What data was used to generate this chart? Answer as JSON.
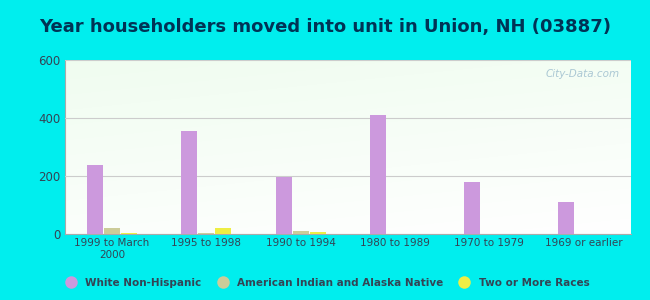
{
  "title": "Year householders moved into unit in Union, NH (03887)",
  "categories": [
    "1999 to March\n2000",
    "1995 to 1998",
    "1990 to 1994",
    "1980 to 1989",
    "1970 to 1979",
    "1969 or earlier"
  ],
  "series": {
    "White Non-Hispanic": [
      237,
      355,
      195,
      412,
      181,
      110
    ],
    "American Indian and Alaska Native": [
      20,
      5,
      10,
      0,
      0,
      0
    ],
    "Two or More Races": [
      5,
      22,
      8,
      0,
      0,
      0
    ]
  },
  "colors": {
    "White Non-Hispanic": "#cc99dd",
    "American Indian and Alaska Native": "#cccc99",
    "Two or More Races": "#eeee44"
  },
  "ylim": [
    0,
    600
  ],
  "yticks": [
    0,
    200,
    400,
    600
  ],
  "background_color": "#00eeee",
  "legend_labels": [
    "White Non-Hispanic",
    "American Indian and Alaska Native",
    "Two or More Races"
  ],
  "watermark": "City-Data.com",
  "title_fontsize": 13,
  "bar_width": 0.18,
  "title_color": "#003355",
  "tick_color": "#334455",
  "grid_color": "#cccccc"
}
